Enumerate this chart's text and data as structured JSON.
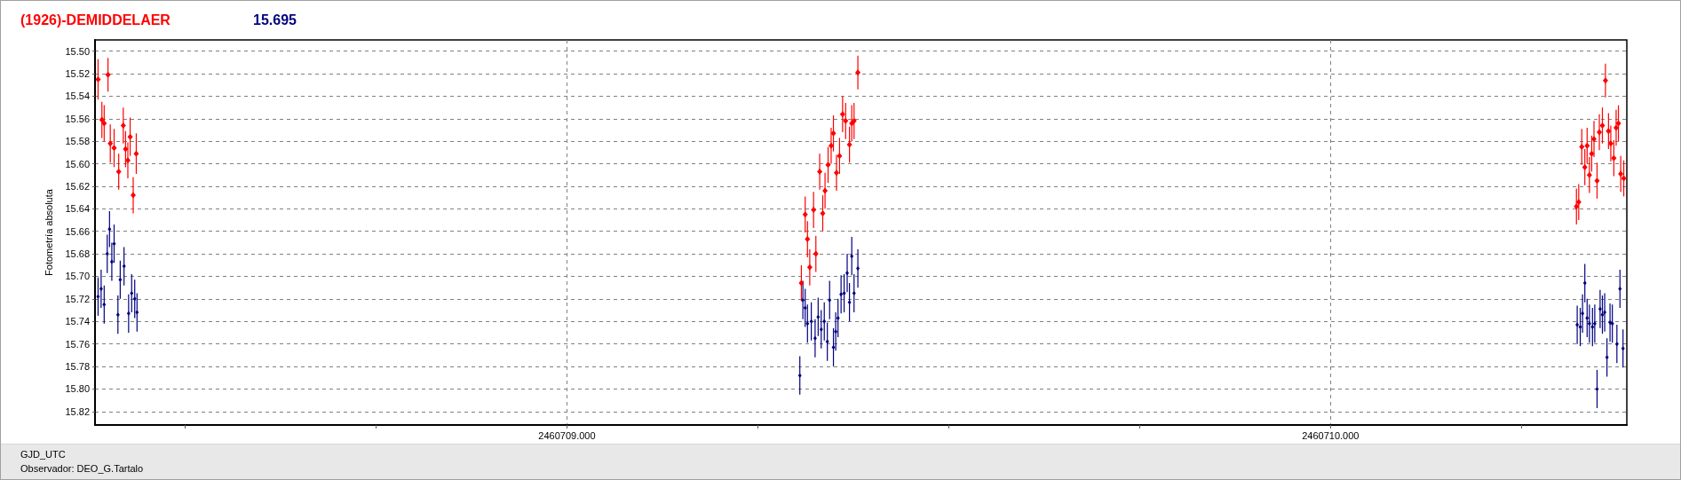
{
  "chart_data": {
    "type": "scatter",
    "title": "(1926)-DEMIDDELAER",
    "subtitle": "15.695",
    "xlabel": "GJD_UTC",
    "ylabel": "Fotometría absoluta",
    "annotations": [
      "Observador: DEO_G.Tartalo"
    ],
    "marker": "diamond",
    "grid": true,
    "xlim": [
      2460708.382,
      2460710.388
    ],
    "xticks": [
      {
        "value": 2460708.5,
        "label": null
      },
      {
        "value": 2460708.75,
        "label": null
      },
      {
        "value": 2460709,
        "label": "2460709.000"
      },
      {
        "value": 2460709.25,
        "label": null
      },
      {
        "value": 2460709.5,
        "label": null
      },
      {
        "value": 2460709.75,
        "label": null
      },
      {
        "value": 2460710,
        "label": "2460710.000"
      },
      {
        "value": 2460710.25,
        "label": null
      }
    ],
    "ylim": [
      15.832,
      15.49
    ],
    "yticks": [
      {
        "value": 15.5,
        "label": "15.50"
      },
      15.52,
      15.54,
      15.56,
      15.58,
      {
        "value": 15.6,
        "label": "15.60"
      },
      15.62,
      15.64,
      15.66,
      15.68,
      {
        "value": 15.7,
        "label": "15.70"
      },
      15.72,
      15.74,
      15.76,
      15.78,
      {
        "value": 15.8,
        "label": "15.80"
      },
      15.82
    ],
    "series": [
      {
        "color": "#ff0000",
        "x": [
          2460708.386,
          2460708.391,
          2460708.394,
          2460708.399,
          2460708.402,
          2460708.407,
          2460708.413,
          2460708.419,
          2460708.422,
          2460708.425,
          2460708.428,
          2460708.432,
          2460708.436,
          2460709.307,
          2460709.312,
          2460709.315,
          2460709.318,
          2460709.323,
          2460709.326,
          2460709.331,
          2460709.335,
          2460709.338,
          2460709.342,
          2460709.346,
          2460709.349,
          2460709.353,
          2460709.357,
          2460709.361,
          2460709.365,
          2460709.37,
          2460709.373,
          2460709.376,
          2460709.381,
          2460710.322,
          2460710.325,
          2460710.329,
          2460710.333,
          2460710.336,
          2460710.339,
          2460710.342,
          2460710.345,
          2460710.349,
          2460710.352,
          2460710.356,
          2460710.36,
          2460710.364,
          2460710.367,
          2460710.371,
          2460710.374,
          2460710.377,
          2460710.38,
          2460710.384
        ],
        "values": [
          15.525,
          15.561,
          15.564,
          15.521,
          15.582,
          15.586,
          15.607,
          15.566,
          15.587,
          15.597,
          15.576,
          15.628,
          15.591,
          15.706,
          15.645,
          15.667,
          15.692,
          15.641,
          15.68,
          15.607,
          15.644,
          15.624,
          15.601,
          15.584,
          15.573,
          15.608,
          15.593,
          15.556,
          15.562,
          15.583,
          15.564,
          15.562,
          15.519,
          15.638,
          15.634,
          15.585,
          15.603,
          15.584,
          15.61,
          15.591,
          15.578,
          15.615,
          15.572,
          15.566,
          15.526,
          15.571,
          15.582,
          15.595,
          15.568,
          15.564,
          15.609,
          15.613
        ],
        "errors": [
          0.018,
          0.016,
          0.016,
          0.015,
          0.017,
          0.017,
          0.016,
          0.016,
          0.016,
          0.016,
          0.017,
          0.016,
          0.018,
          0.016,
          0.016,
          0.016,
          0.016,
          0.016,
          0.016,
          0.016,
          0.016,
          0.016,
          0.016,
          0.016,
          0.016,
          0.016,
          0.016,
          0.016,
          0.016,
          0.016,
          0.016,
          0.016,
          0.015,
          0.016,
          0.016,
          0.016,
          0.016,
          0.016,
          0.016,
          0.016,
          0.016,
          0.016,
          0.016,
          0.016,
          0.015,
          0.016,
          0.016,
          0.016,
          0.016,
          0.016,
          0.016,
          0.016
        ]
      },
      {
        "color": "#000080",
        "x": [
          2460708.386,
          2460708.39,
          2460708.394,
          2460708.398,
          2460708.401,
          2460708.404,
          2460708.407,
          2460708.412,
          2460708.415,
          2460708.42,
          2460708.426,
          2460708.43,
          2460708.434,
          2460708.437,
          2460709.305,
          2460709.309,
          2460709.312,
          2460709.315,
          2460709.32,
          2460709.325,
          2460709.329,
          2460709.333,
          2460709.337,
          2460709.341,
          2460709.344,
          2460709.349,
          2460709.352,
          2460709.355,
          2460709.359,
          2460709.363,
          2460709.367,
          2460709.37,
          2460709.373,
          2460709.376,
          2460709.381,
          2460710.323,
          2460710.327,
          2460710.33,
          2460710.333,
          2460710.336,
          2460710.339,
          2460710.343,
          2460710.346,
          2460710.349,
          2460710.353,
          2460710.356,
          2460710.359,
          2460710.362,
          2460710.366,
          2460710.369,
          2460710.375,
          2460710.379,
          2460710.383
        ],
        "values": [
          15.718,
          15.711,
          15.725,
          15.68,
          15.658,
          15.687,
          15.671,
          15.734,
          15.703,
          15.691,
          15.733,
          15.715,
          15.72,
          15.732,
          15.788,
          15.721,
          15.728,
          15.742,
          15.74,
          15.755,
          15.736,
          15.747,
          15.74,
          15.758,
          15.721,
          15.763,
          15.749,
          15.737,
          15.716,
          15.715,
          15.697,
          15.723,
          15.682,
          15.715,
          15.693,
          15.743,
          15.745,
          15.733,
          15.706,
          15.737,
          15.742,
          15.745,
          15.742,
          15.8,
          15.729,
          15.734,
          15.732,
          15.772,
          15.741,
          15.742,
          15.76,
          15.711,
          15.764
        ],
        "errors": [
          0.017,
          0.017,
          0.017,
          0.017,
          0.016,
          0.017,
          0.017,
          0.017,
          0.017,
          0.017,
          0.017,
          0.017,
          0.017,
          0.017,
          0.017,
          0.017,
          0.017,
          0.017,
          0.017,
          0.017,
          0.017,
          0.017,
          0.017,
          0.017,
          0.017,
          0.017,
          0.017,
          0.017,
          0.017,
          0.017,
          0.017,
          0.017,
          0.017,
          0.017,
          0.017,
          0.017,
          0.017,
          0.017,
          0.017,
          0.017,
          0.017,
          0.017,
          0.017,
          0.017,
          0.017,
          0.017,
          0.017,
          0.017,
          0.017,
          0.017,
          0.017,
          0.017,
          0.017
        ]
      }
    ]
  }
}
